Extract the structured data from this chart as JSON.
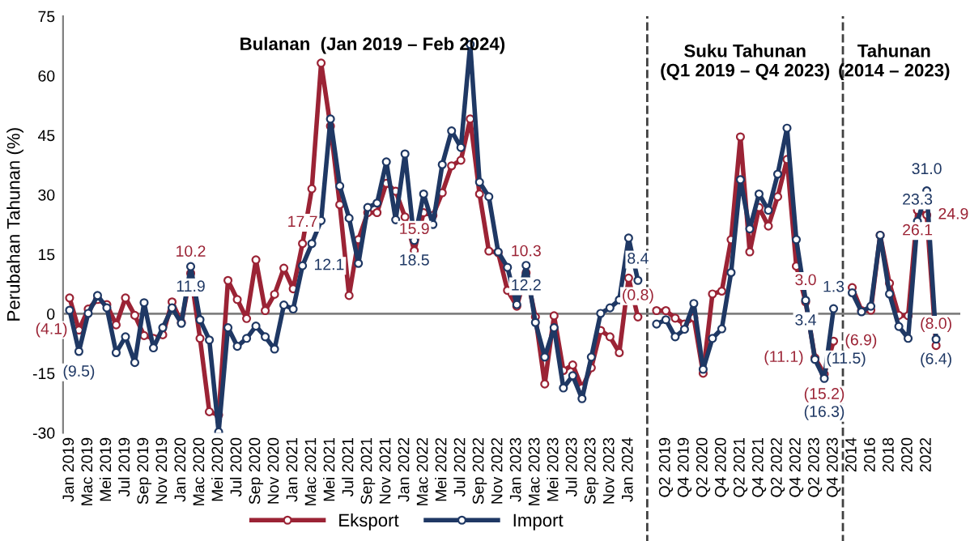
{
  "chart_data": {
    "type": "line",
    "ylabel": "Perubahan Tahunan (%)",
    "categories": [
      "Jan 2019",
      null,
      "Mac 2019",
      null,
      "Mei 2019",
      null,
      "Jul 2019",
      null,
      "Sep 2019",
      null,
      "Nov 2019",
      null,
      "Jan 2020",
      null,
      "Mac 2020",
      null,
      "Mei 2020",
      null,
      "Jul 2020",
      null,
      "Sep 2020",
      null,
      "Nov 2020",
      null,
      "Jan 2021",
      null,
      "Mac 2021",
      null,
      "Mei 2021",
      null,
      "Jul 2021",
      null,
      "Sep 2021",
      null,
      "Nov 2021",
      null,
      "Jan 2022",
      null,
      "Mac 2022",
      null,
      "Mei 2022",
      null,
      "Jul 2022",
      null,
      "Sep 2022",
      null,
      "Nov 2022",
      null,
      "Jan 2023",
      null,
      "Mac 2023",
      null,
      "Mei 2023",
      null,
      "Jul 2023",
      null,
      "Sep 2023",
      null,
      "Nov 2023",
      null,
      "Jan 2024",
      null,
      null,
      null,
      "Q2 2019",
      null,
      "Q4 2019",
      null,
      "Q2 2020",
      null,
      "Q4 2020",
      null,
      "Q2 2021",
      null,
      "Q4 2021",
      null,
      "Q2 2022",
      null,
      "Q4 2022",
      null,
      "Q2 2023",
      null,
      "Q4 2023",
      null,
      "2014",
      null,
      "2016",
      null,
      "2018",
      null,
      "2020",
      null,
      "2022",
      null
    ],
    "series": [
      {
        "name": "Eksport",
        "color": "#9b2335",
        "values": [
          4.0,
          -4.1,
          1.2,
          3.6,
          2.3,
          -2.8,
          4.0,
          -0.4,
          -5.5,
          -6.2,
          -5.3,
          3.0,
          -2.2,
          10.2,
          -6.2,
          -24.7,
          -25.5,
          8.4,
          3.6,
          -1.2,
          13.6,
          0.8,
          4.9,
          11.5,
          6.3,
          17.7,
          31.5,
          63.2,
          47.3,
          27.5,
          4.6,
          18.7,
          25.5,
          25.5,
          32.9,
          30.9,
          24.4,
          15.9,
          25.5,
          24.8,
          30.5,
          37.3,
          38.7,
          49.1,
          30.2,
          15.8,
          15.4,
          5.9,
          1.9,
          10.3,
          -0.8,
          -17.7,
          -0.5,
          -14.3,
          -12.9,
          -18.7,
          -13.6,
          -4.2,
          -5.8,
          -9.8,
          9.0,
          -0.8,
          null,
          0.8,
          0.8,
          -1.1,
          -2.6,
          -1.0,
          -15.0,
          5.0,
          5.7,
          18.7,
          44.6,
          15.6,
          26.8,
          22.1,
          29.5,
          38.9,
          12.0,
          3.0,
          -11.1,
          -15.2,
          -6.9,
          null,
          6.6,
          0.8,
          0.9,
          19.8,
          7.7,
          -0.4,
          -0.5,
          26.1,
          24.9,
          -8.0
        ],
        "value_labels": [
          null,
          "(4.1)",
          null,
          null,
          null,
          null,
          null,
          null,
          null,
          null,
          null,
          null,
          null,
          "10.2",
          null,
          null,
          null,
          null,
          null,
          null,
          null,
          null,
          null,
          null,
          null,
          "17.7",
          null,
          null,
          null,
          null,
          null,
          null,
          null,
          null,
          null,
          null,
          null,
          "15.9",
          null,
          null,
          null,
          null,
          null,
          null,
          null,
          null,
          null,
          null,
          null,
          "10.3",
          null,
          null,
          null,
          null,
          null,
          null,
          null,
          null,
          null,
          null,
          null,
          "(0.8)",
          null,
          null,
          null,
          null,
          null,
          null,
          null,
          null,
          null,
          null,
          null,
          null,
          null,
          null,
          null,
          null,
          null,
          "3.0",
          "(11.1)",
          "(15.2)",
          "(6.9)",
          null,
          null,
          null,
          null,
          null,
          null,
          null,
          null,
          "26.1",
          "24.9",
          "(8.0)"
        ]
      },
      {
        "name": "Import",
        "color": "#1f3864",
        "values": [
          0.9,
          -9.5,
          0.1,
          4.6,
          1.5,
          -9.8,
          -5.8,
          -12.3,
          2.8,
          -8.6,
          -3.5,
          1.5,
          -2.4,
          11.9,
          -1.5,
          -6.6,
          -29.8,
          -3.5,
          -8.2,
          -6.2,
          -3.1,
          -5.8,
          -8.9,
          2.2,
          1.2,
          12.1,
          17.7,
          23.5,
          49.1,
          32.2,
          24.1,
          12.7,
          26.8,
          27.9,
          38.3,
          23.7,
          40.3,
          18.5,
          30.2,
          22.5,
          37.6,
          46.1,
          41.9,
          67.9,
          33.2,
          29.5,
          15.6,
          11.7,
          2.3,
          12.2,
          -2.2,
          -10.9,
          -3.5,
          -18.7,
          -15.6,
          -21.4,
          -10.9,
          0.1,
          1.5,
          3.5,
          19.1,
          8.4,
          null,
          -2.6,
          -1.5,
          -5.8,
          -3.9,
          2.6,
          -14.0,
          -6.2,
          -3.8,
          10.4,
          33.8,
          21.4,
          30.2,
          26.1,
          35.2,
          46.8,
          18.7,
          3.4,
          -11.5,
          -16.3,
          1.3,
          null,
          5.3,
          0.5,
          1.9,
          19.8,
          5.0,
          -3.2,
          -6.2,
          23.3,
          31.0,
          -6.4
        ],
        "value_labels": [
          null,
          "(9.5)",
          null,
          null,
          null,
          null,
          null,
          null,
          null,
          null,
          null,
          null,
          null,
          "11.9",
          null,
          null,
          null,
          null,
          null,
          null,
          null,
          null,
          null,
          null,
          null,
          "12.1",
          null,
          null,
          null,
          null,
          null,
          null,
          null,
          null,
          null,
          null,
          null,
          "18.5",
          null,
          null,
          null,
          null,
          null,
          null,
          null,
          null,
          null,
          null,
          null,
          "12.2",
          null,
          null,
          null,
          null,
          null,
          null,
          null,
          null,
          null,
          null,
          null,
          "8.4",
          null,
          null,
          null,
          null,
          null,
          null,
          null,
          null,
          null,
          null,
          null,
          null,
          null,
          null,
          null,
          null,
          null,
          "3.4",
          "(11.5)",
          "(16.3)",
          "1.3",
          null,
          null,
          null,
          null,
          null,
          null,
          null,
          null,
          "23.3",
          "31.0",
          "(6.4)"
        ]
      }
    ],
    "ylim": [
      -30,
      75
    ],
    "yticks": [
      -30,
      -15,
      0,
      15,
      30,
      45,
      60,
      75
    ],
    "ref_lines": [
      {
        "axis": "y",
        "value": 0,
        "color": "#808080",
        "line_style": "solid"
      }
    ],
    "annotations": [
      "Bulanan  (Jan 2019 – Feb 2024)",
      "Suku Tahunan\n(Q1 2019 – Q4 2023)",
      "Tahunan\n(2014 – 2023)"
    ],
    "marker": "circle",
    "line_style": "solid",
    "grid": false,
    "legend": "bottom"
  }
}
